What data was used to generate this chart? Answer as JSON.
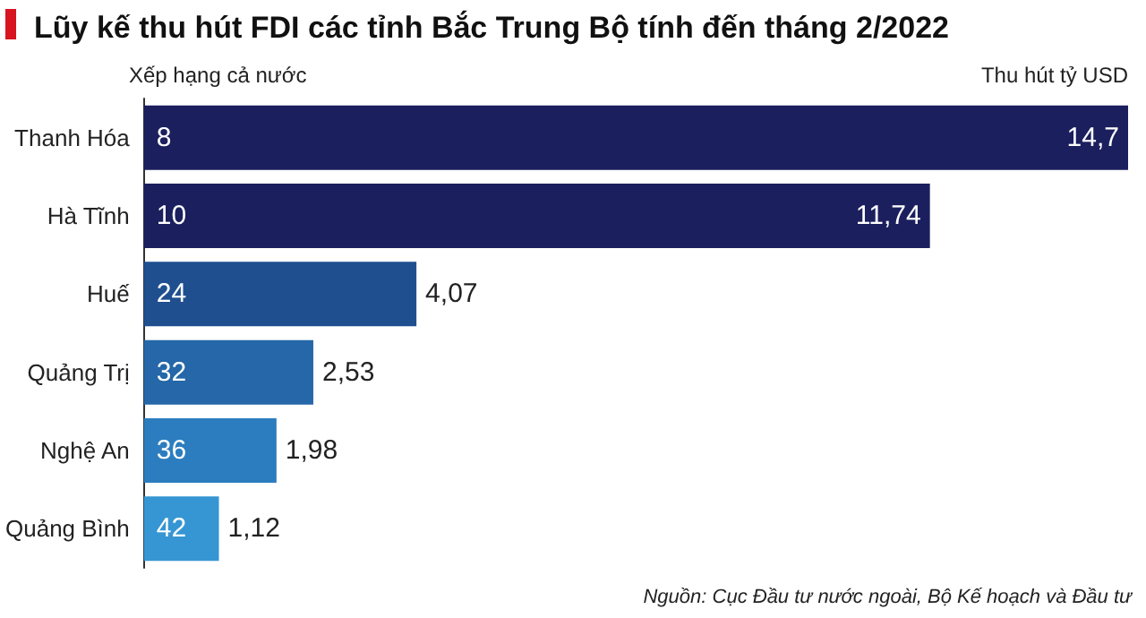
{
  "chart_data": {
    "type": "bar",
    "orientation": "horizontal",
    "title": "Lũy kế thu hút FDI các tỉnh Bắc Trung Bộ tính đến tháng 2/2022",
    "categories": [
      "Thanh Hóa",
      "Hà Tĩnh",
      "Huế",
      "Quảng Trị",
      "Nghệ An",
      "Quảng Bình"
    ],
    "values": [
      14.7,
      11.74,
      4.07,
      2.53,
      1.98,
      1.12
    ],
    "value_labels": [
      "14,7",
      "11,74",
      "4,07",
      "2,53",
      "1,98",
      "1,12"
    ],
    "colors": [
      "#1b1f5e",
      "#1b1f5e",
      "#1f4f8f",
      "#2567a8",
      "#2c7dbf",
      "#3596d3"
    ],
    "annotations": [
      "Xếp hạng cả nước",
      "Thu hút tỷ USD",
      "Nguồn: Cục Đầu tư nước ngoài, Bộ Kế hoạch và Đầu tư",
      {
        "text": "8",
        "y": "Thanh Hóa"
      },
      {
        "text": "10",
        "y": "Hà Tĩnh"
      },
      {
        "text": "24",
        "y": "Huế"
      },
      {
        "text": "32",
        "y": "Quảng Trị"
      },
      {
        "text": "36",
        "y": "Nghệ An"
      },
      {
        "text": "42",
        "y": "Quảng Bình"
      }
    ]
  }
}
